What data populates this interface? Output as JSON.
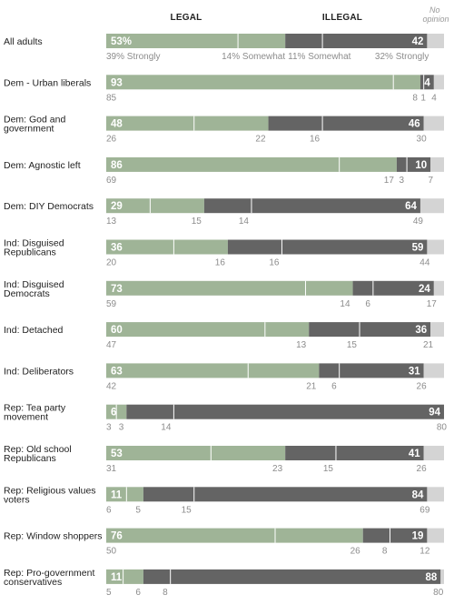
{
  "chart_data": {
    "type": "bar",
    "orientation": "horizontal-stacked",
    "headers": {
      "legal": "LEGAL",
      "illegal": "ILLEGAL",
      "no_opinion": "No opinion"
    },
    "colors": {
      "legal": "#9fb497",
      "illegal": "#646464",
      "no_opinion": "#d4d4d4",
      "divider": "#ffffff",
      "sub_text": "#8c8c8c"
    },
    "xlim": [
      0,
      100
    ],
    "groups": [
      {
        "name": "All adults",
        "legal": 53,
        "legal_label": "53%",
        "illegal": 42,
        "illegal_label": "42",
        "legal_strongly": 39,
        "legal_somewhat": 14,
        "illegal_somewhat": 11,
        "illegal_strongly": 32,
        "sub_labels": [
          "39% Strongly",
          "14% Somewhat",
          "11% Somewhat",
          "32% Strongly"
        ]
      },
      {
        "name": "Dem - Urban liberals",
        "legal": 93,
        "legal_label": "93",
        "illegal": 4,
        "illegal_label": "4",
        "legal_strongly": 85,
        "legal_somewhat": 8,
        "illegal_somewhat": 1,
        "illegal_strongly": 4,
        "sub_labels": [
          "85",
          "8",
          "1",
          "4"
        ]
      },
      {
        "name": "Dem: God and government",
        "legal": 48,
        "legal_label": "48",
        "illegal": 46,
        "illegal_label": "46",
        "legal_strongly": 26,
        "legal_somewhat": 22,
        "illegal_somewhat": 16,
        "illegal_strongly": 30,
        "sub_labels": [
          "26",
          "22",
          "16",
          "30"
        ]
      },
      {
        "name": "Dem: Agnostic left",
        "legal": 86,
        "legal_label": "86",
        "illegal": 10,
        "illegal_label": "10",
        "legal_strongly": 69,
        "legal_somewhat": 17,
        "illegal_somewhat": 3,
        "illegal_strongly": 7,
        "sub_labels": [
          "69",
          "17",
          "3",
          "7"
        ]
      },
      {
        "name": "Dem: DIY Democrats",
        "legal": 29,
        "legal_label": "29",
        "illegal": 64,
        "illegal_label": "64",
        "legal_strongly": 13,
        "legal_somewhat": 15,
        "illegal_somewhat": 14,
        "illegal_strongly": 49,
        "sub_labels": [
          "13",
          "15",
          "14",
          "49"
        ]
      },
      {
        "name": "Ind: Disguised Republicans",
        "legal": 36,
        "legal_label": "36",
        "illegal": 59,
        "illegal_label": "59",
        "legal_strongly": 20,
        "legal_somewhat": 16,
        "illegal_somewhat": 16,
        "illegal_strongly": 44,
        "sub_labels": [
          "20",
          "16",
          "16",
          "44"
        ]
      },
      {
        "name": "Ind: Disguised Democrats",
        "legal": 73,
        "legal_label": "73",
        "illegal": 24,
        "illegal_label": "24",
        "legal_strongly": 59,
        "legal_somewhat": 14,
        "illegal_somewhat": 6,
        "illegal_strongly": 17,
        "sub_labels": [
          "59",
          "14",
          "6",
          "17"
        ]
      },
      {
        "name": "Ind: Detached",
        "legal": 60,
        "legal_label": "60",
        "illegal": 36,
        "illegal_label": "36",
        "legal_strongly": 47,
        "legal_somewhat": 13,
        "illegal_somewhat": 15,
        "illegal_strongly": 21,
        "sub_labels": [
          "47",
          "13",
          "15",
          "21"
        ]
      },
      {
        "name": "Ind: Deliberators",
        "legal": 63,
        "legal_label": "63",
        "illegal": 31,
        "illegal_label": "31",
        "legal_strongly": 42,
        "legal_somewhat": 21,
        "illegal_somewhat": 6,
        "illegal_strongly": 26,
        "sub_labels": [
          "42",
          "21",
          "6",
          "26"
        ]
      },
      {
        "name": "Rep: Tea party movement",
        "legal": 6,
        "legal_label": "6",
        "illegal": 94,
        "illegal_label": "94",
        "legal_strongly": 3,
        "legal_somewhat": 3,
        "illegal_somewhat": 14,
        "illegal_strongly": 80,
        "sub_labels": [
          "3",
          "3",
          "14",
          "80"
        ]
      },
      {
        "name": "Rep: Old school Republicans",
        "legal": 53,
        "legal_label": "53",
        "illegal": 41,
        "illegal_label": "41",
        "legal_strongly": 31,
        "legal_somewhat": 23,
        "illegal_somewhat": 15,
        "illegal_strongly": 26,
        "sub_labels": [
          "31",
          "23",
          "15",
          "26"
        ]
      },
      {
        "name": "Rep: Religious values voters",
        "legal": 11,
        "legal_label": "11",
        "illegal": 84,
        "illegal_label": "84",
        "legal_strongly": 6,
        "legal_somewhat": 5,
        "illegal_somewhat": 15,
        "illegal_strongly": 69,
        "sub_labels": [
          "6",
          "5",
          "15",
          "69"
        ]
      },
      {
        "name": "Rep: Window shoppers",
        "legal": 76,
        "legal_label": "76",
        "illegal": 19,
        "illegal_label": "19",
        "legal_strongly": 50,
        "legal_somewhat": 26,
        "illegal_somewhat": 8,
        "illegal_strongly": 12,
        "sub_labels": [
          "50",
          "26",
          "8",
          "12"
        ]
      },
      {
        "name": "Rep: Pro-government conservatives",
        "legal": 11,
        "legal_label": "11",
        "illegal": 88,
        "illegal_label": "88",
        "legal_strongly": 5,
        "legal_somewhat": 6,
        "illegal_somewhat": 8,
        "illegal_strongly": 80,
        "sub_labels": [
          "5",
          "6",
          "8",
          "80"
        ]
      }
    ]
  }
}
